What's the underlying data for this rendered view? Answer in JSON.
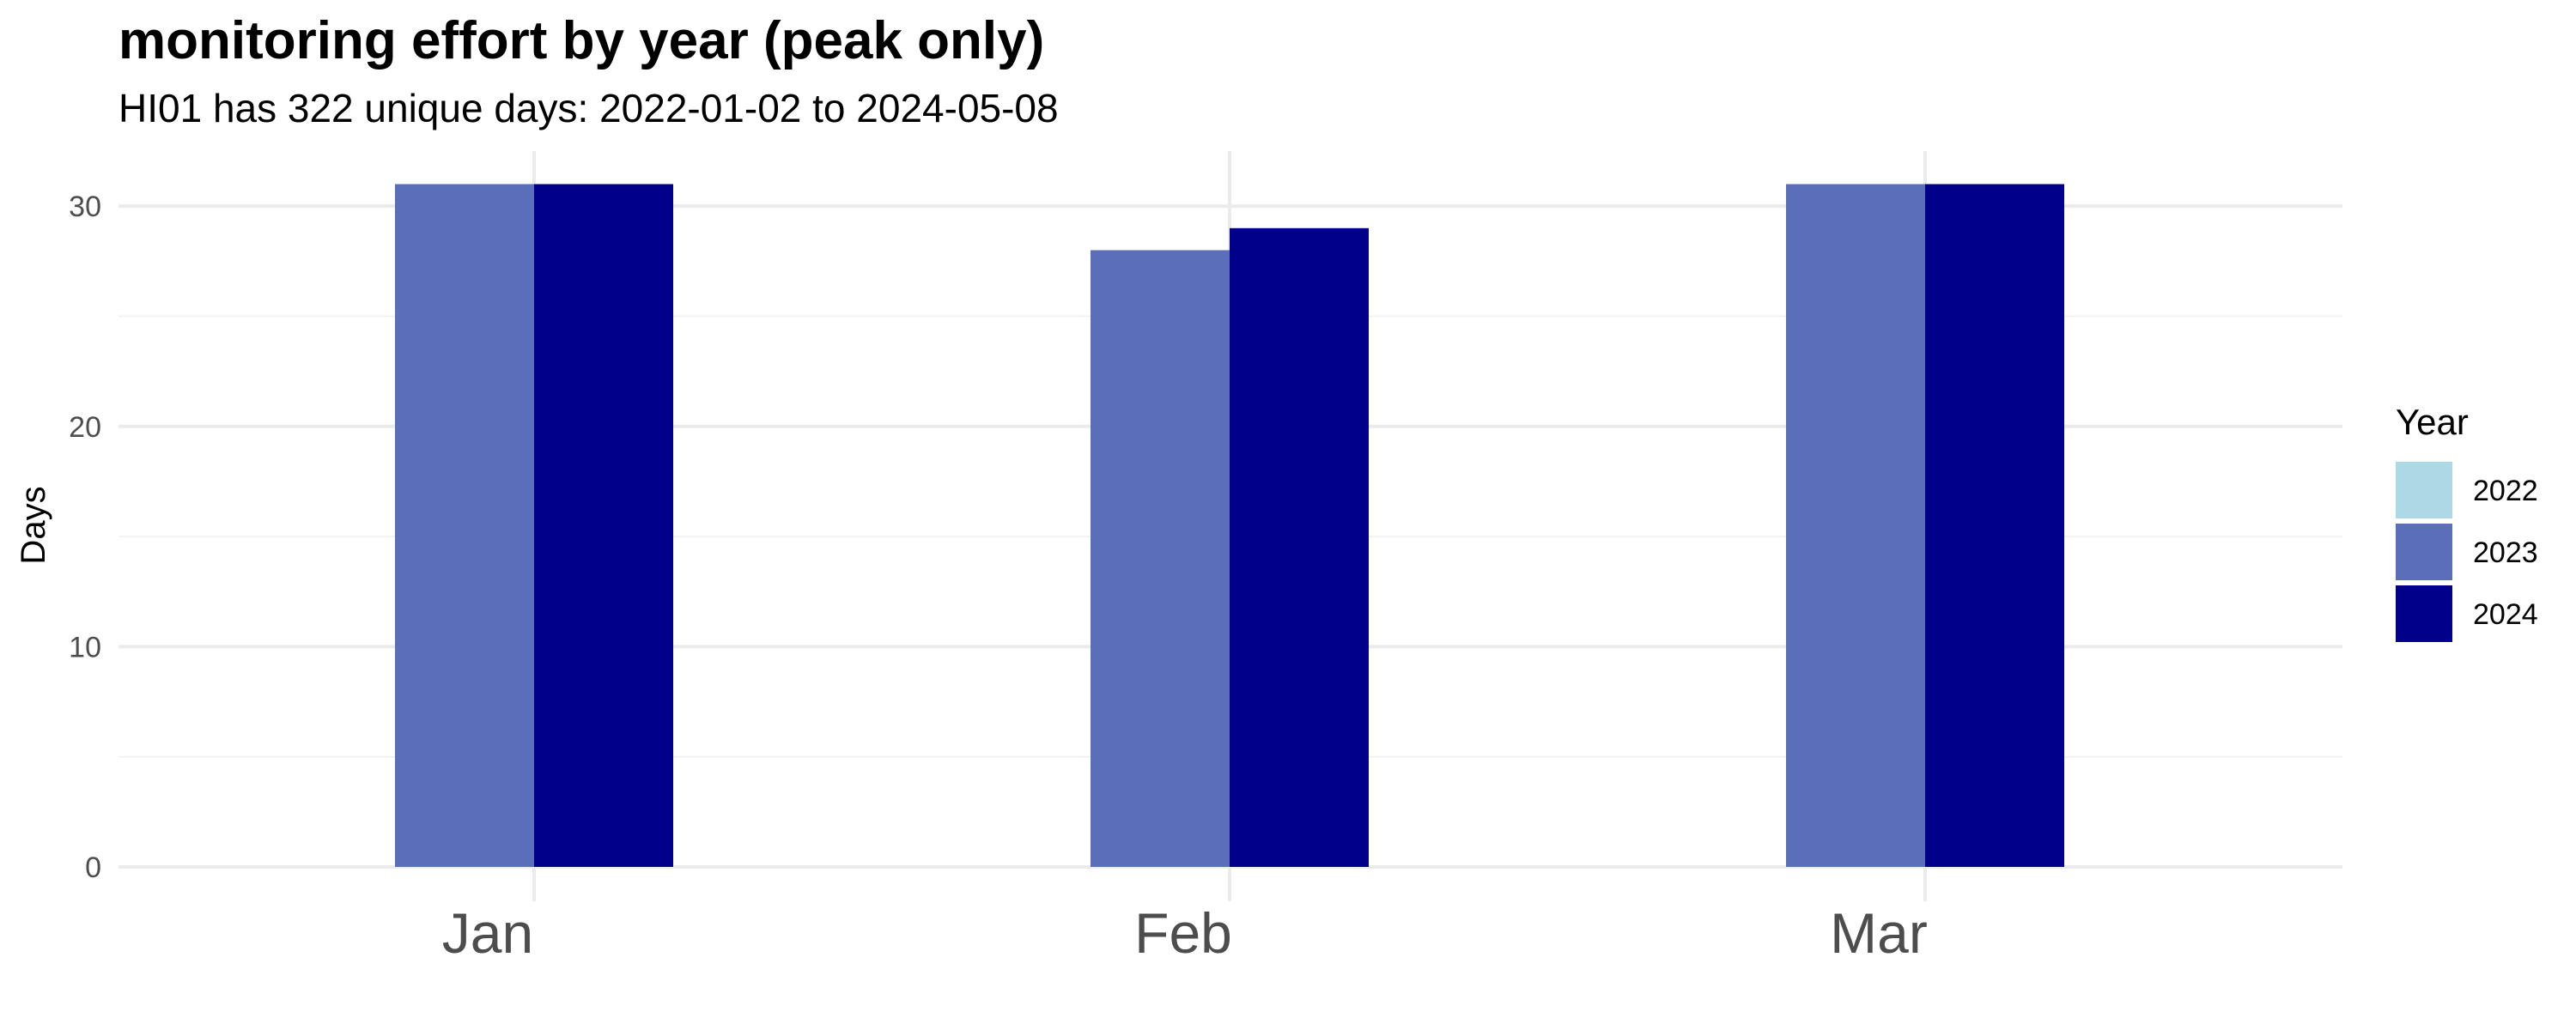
{
  "chart_data": {
    "type": "bar",
    "title": "monitoring effort by year (peak only)",
    "subtitle": "HI01 has 322 unique days: 2022-01-02 to 2024-05-08",
    "xlabel": "",
    "ylabel": "Days",
    "categories": [
      "Jan",
      "Feb",
      "Mar"
    ],
    "ylim": [
      0,
      32.5
    ],
    "yticks": [
      0,
      10,
      20,
      30
    ],
    "grid": true,
    "legend": {
      "title": "Year",
      "position": "right"
    },
    "series": [
      {
        "name": "2022",
        "color": "#add8e6",
        "values": [
          0,
          0,
          0
        ]
      },
      {
        "name": "2023",
        "color": "#5a6eba",
        "values": [
          31,
          28,
          31
        ]
      },
      {
        "name": "2024",
        "color": "#00008b",
        "values": [
          31,
          29,
          31
        ]
      }
    ]
  }
}
